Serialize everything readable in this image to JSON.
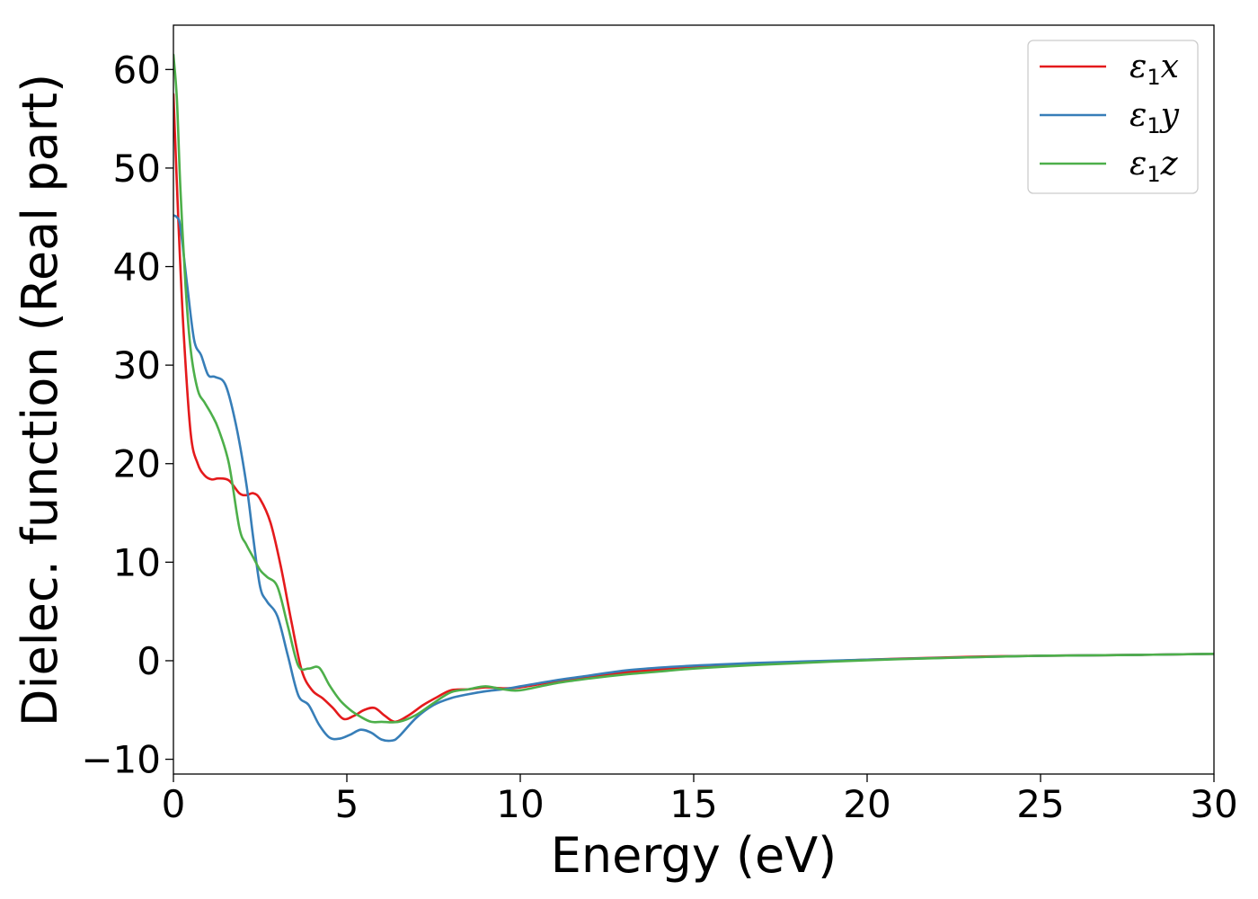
{
  "chart_data": {
    "type": "line",
    "title": "",
    "xlabel": "Energy (eV)",
    "ylabel": "Dielec. function (Real part)",
    "xlim": [
      0,
      30
    ],
    "ylim": [
      -11.5,
      64.5
    ],
    "xticks": [
      0,
      5,
      10,
      15,
      20,
      25,
      30
    ],
    "xtick_labels": [
      "0",
      "5",
      "10",
      "15",
      "20",
      "25",
      "30"
    ],
    "yticks": [
      -10,
      0,
      10,
      20,
      30,
      40,
      50,
      60
    ],
    "ytick_labels": [
      "−10",
      "0",
      "10",
      "20",
      "30",
      "40",
      "50",
      "60"
    ],
    "grid": false,
    "legend_position": "top-right",
    "series": [
      {
        "name": "ε1x",
        "symbol": "ε",
        "subscript": "1",
        "component": "x",
        "color": "#e41a1c",
        "x": [
          0,
          0.15,
          0.3,
          0.5,
          0.7,
          0.9,
          1.1,
          1.3,
          1.6,
          1.9,
          2.1,
          2.3,
          2.5,
          2.8,
          3.1,
          3.4,
          3.7,
          4.0,
          4.3,
          4.6,
          4.9,
          5.2,
          5.5,
          5.8,
          6.1,
          6.4,
          6.8,
          7.2,
          7.6,
          8.0,
          8.5,
          9.0,
          9.5,
          10.0,
          11.0,
          12.0,
          13.0,
          14.0,
          15.0,
          17.0,
          20.0,
          23.0,
          25.0,
          28.0,
          30.0
        ],
        "y": [
          57.5,
          44.0,
          33.0,
          23.0,
          20.0,
          18.8,
          18.4,
          18.5,
          18.3,
          17.0,
          16.8,
          17.0,
          16.4,
          14.0,
          9.5,
          4.0,
          -1.0,
          -3.0,
          -3.8,
          -4.8,
          -5.9,
          -5.6,
          -5.0,
          -4.8,
          -5.6,
          -6.2,
          -5.5,
          -4.5,
          -3.7,
          -3.0,
          -2.9,
          -2.7,
          -2.8,
          -2.7,
          -2.1,
          -1.6,
          -1.2,
          -0.9,
          -0.6,
          -0.3,
          0.1,
          0.4,
          0.5,
          0.6,
          0.7
        ]
      },
      {
        "name": "ε1y",
        "symbol": "ε",
        "subscript": "1",
        "component": "y",
        "color": "#377eb8",
        "x": [
          0,
          0.1,
          0.2,
          0.4,
          0.6,
          0.8,
          1.0,
          1.2,
          1.5,
          1.8,
          2.1,
          2.3,
          2.5,
          2.7,
          3.0,
          3.3,
          3.6,
          3.9,
          4.2,
          4.5,
          4.8,
          5.1,
          5.4,
          5.7,
          6.0,
          6.3,
          6.5,
          7.0,
          7.5,
          8.0,
          8.5,
          9.0,
          9.5,
          10.0,
          11.0,
          12.0,
          13.0,
          14.0,
          15.0,
          17.0,
          20.0,
          23.0,
          25.0,
          28.0,
          30.0
        ],
        "y": [
          45.2,
          45.0,
          44.0,
          38.0,
          32.5,
          31.0,
          29.0,
          28.8,
          28.0,
          24.0,
          18.0,
          12.5,
          7.5,
          6.0,
          4.5,
          0.5,
          -3.5,
          -4.5,
          -6.5,
          -7.8,
          -7.9,
          -7.5,
          -7.0,
          -7.3,
          -8.0,
          -8.1,
          -7.7,
          -5.8,
          -4.5,
          -3.8,
          -3.4,
          -3.1,
          -2.9,
          -2.6,
          -2.0,
          -1.5,
          -1.0,
          -0.7,
          -0.5,
          -0.2,
          0.1,
          0.35,
          0.5,
          0.6,
          0.7
        ]
      },
      {
        "name": "ε1z",
        "symbol": "ε",
        "subscript": "1",
        "component": "z",
        "color": "#4daf4a",
        "x": [
          0,
          0.1,
          0.2,
          0.35,
          0.5,
          0.7,
          0.9,
          1.1,
          1.3,
          1.6,
          1.9,
          2.1,
          2.3,
          2.5,
          2.7,
          3.0,
          3.3,
          3.6,
          3.9,
          4.2,
          4.5,
          4.8,
          5.1,
          5.4,
          5.7,
          6.0,
          6.5,
          7.0,
          7.5,
          8.0,
          8.5,
          9.0,
          9.5,
          10.0,
          11.0,
          12.0,
          13.0,
          14.0,
          15.0,
          17.0,
          20.0,
          23.0,
          25.0,
          28.0,
          30.0
        ],
        "y": [
          61.5,
          57.0,
          48.0,
          38.0,
          31.5,
          27.5,
          26.2,
          25.0,
          23.5,
          20.0,
          13.5,
          11.8,
          10.5,
          9.2,
          8.5,
          7.5,
          3.5,
          -0.5,
          -0.8,
          -0.7,
          -2.5,
          -4.0,
          -5.0,
          -5.7,
          -6.2,
          -6.2,
          -6.2,
          -5.5,
          -4.3,
          -3.2,
          -2.9,
          -2.6,
          -2.9,
          -3.0,
          -2.3,
          -1.8,
          -1.4,
          -1.1,
          -0.8,
          -0.4,
          0.05,
          0.35,
          0.5,
          0.6,
          0.7
        ]
      }
    ]
  }
}
